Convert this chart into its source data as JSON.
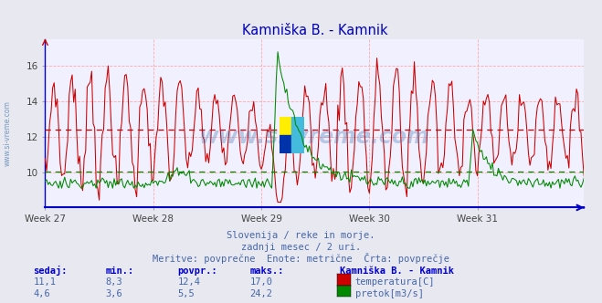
{
  "title": "Kamniška B. - Kamnik",
  "title_color": "#0000bb",
  "bg_color": "#e8e8f0",
  "plot_bg_color": "#f0f0ff",
  "grid_color": "#ffaaaa",
  "temp_color": "#cc0000",
  "flow_color": "#008800",
  "axis_color": "#0000cc",
  "tick_color": "#444444",
  "watermark_text": "www.si-vreme.com",
  "watermark_color": "#3366aa",
  "watermark_left_color": "#6688aa",
  "subtitle1": "Slovenija / reke in morje.",
  "subtitle2": "zadnji mesec / 2 uri.",
  "subtitle3": "Meritve: povprečne  Enote: metrične  Črta: povprečje",
  "subtitle_color": "#4466aa",
  "table_headers": [
    "sedaj:",
    "min.:",
    "povpr.:",
    "maks.:"
  ],
  "table_header_color": "#0000cc",
  "table_row1": [
    "11,1",
    "8,3",
    "12,4",
    "17,0"
  ],
  "table_row2": [
    "4,6",
    "3,6",
    "5,5",
    "24,2"
  ],
  "table_value_color": "#4466aa",
  "legend_title": "Kamniška B. - Kamnik",
  "legend_title_color": "#0000cc",
  "legend_temp": "temperatura[C]",
  "legend_flow": "pretok[m3/s]",
  "temp_avg": 12.4,
  "flow_avg": 5.5,
  "ylim_temp_min": 8.0,
  "ylim_temp_max": 17.5,
  "yticks": [
    10,
    12,
    14,
    16
  ],
  "flow_scale_max": 26.0,
  "n_points": 360,
  "week_positions": [
    0,
    72,
    144,
    216,
    288
  ],
  "week_labels": [
    "Week 27",
    "Week 28",
    "Week 29",
    "Week 30",
    "Week 31"
  ]
}
